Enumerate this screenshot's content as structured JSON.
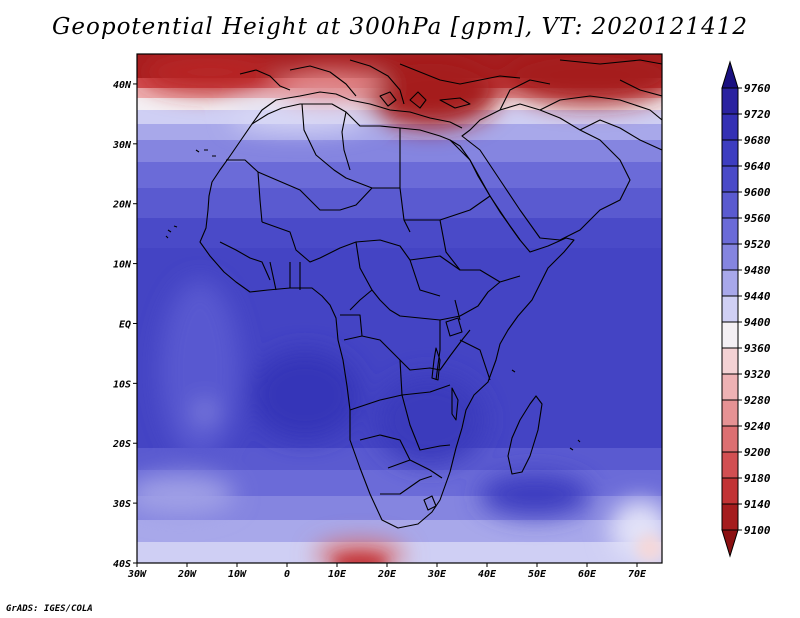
{
  "title": "Geopotential Height at 300hPa [gpm], VT: 2020121412",
  "credit": "GrADS: IGES/COLA",
  "map": {
    "region": "Africa",
    "lon_range": [
      -30,
      75
    ],
    "lat_range": [
      -40,
      45
    ],
    "lon_ticks": [
      "30W",
      "20W",
      "10W",
      "0",
      "10E",
      "20E",
      "30E",
      "40E",
      "50E",
      "60E",
      "70E"
    ],
    "lat_ticks": [
      "40N",
      "30N",
      "20N",
      "10N",
      "EQ",
      "10S",
      "20S",
      "30S",
      "40S"
    ]
  },
  "colorbar": {
    "levels": [
      "9760",
      "9720",
      "9680",
      "9640",
      "9600",
      "9560",
      "9520",
      "9480",
      "9440",
      "9400",
      "9360",
      "9320",
      "9280",
      "9240",
      "9200",
      "9180",
      "9140",
      "9100"
    ],
    "colors": [
      "#1a1080",
      "#2a22a0",
      "#3430b4",
      "#3d3dc0",
      "#4a4ac8",
      "#5a5ad0",
      "#6b6bd8",
      "#8585e0",
      "#a8a8ea",
      "#cfcff4",
      "#f4f0f4",
      "#f4d2d4",
      "#eeb2b4",
      "#e69294",
      "#dd6f72",
      "#d24f52",
      "#c23335",
      "#a51c1e",
      "#8b1012"
    ]
  }
}
